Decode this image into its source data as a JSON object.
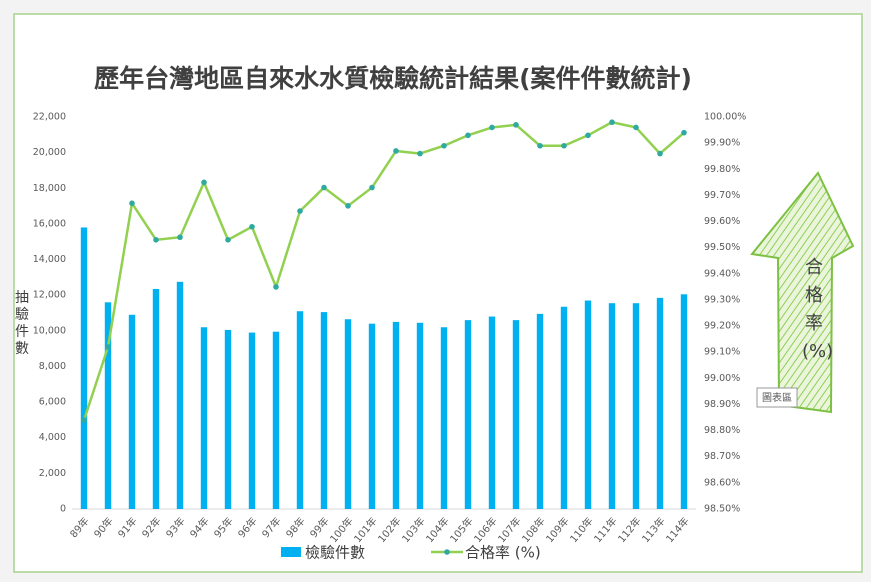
{
  "chart_data": {
    "type": "bar-line",
    "title": "歷年台灣地區自來水水質檢驗統計結果(案件件數統計)",
    "y_axis_label": "抽驗件數",
    "arrow_label": "合格率 (%)",
    "tooltip": "圖表區",
    "categories": [
      "89年",
      "90年",
      "91年",
      "92年",
      "93年",
      "94年",
      "95年",
      "96年",
      "97年",
      "98年",
      "99年",
      "100年",
      "101年",
      "102年",
      "103年",
      "104年",
      "105年",
      "106年",
      "107年",
      "108年",
      "109年",
      "110年",
      "111年",
      "112年",
      "113年",
      "114年"
    ],
    "series": [
      {
        "name": "檢驗件數",
        "color": "#00b0f0",
        "kind": "bar",
        "values": [
          15800,
          11600,
          10900,
          12350,
          12750,
          10200,
          10050,
          9900,
          9950,
          11100,
          11050,
          10650,
          10400,
          10500,
          10450,
          10200,
          10600,
          10800,
          10600,
          10950,
          11350,
          11700,
          11550,
          11550,
          11850,
          12050
        ]
      },
      {
        "name": "合格率 (%)",
        "color": "#92d050",
        "marker_color": "#2eaaa0",
        "kind": "line",
        "axis": "y2",
        "values": [
          98.84,
          99.12,
          99.67,
          99.53,
          99.54,
          99.75,
          99.53,
          99.58,
          99.35,
          99.64,
          99.73,
          99.66,
          99.73,
          99.87,
          99.86,
          99.89,
          99.93,
          99.96,
          99.97,
          99.89,
          99.89,
          99.93,
          99.98,
          99.96,
          99.86,
          99.94
        ]
      }
    ],
    "ylim": [
      0,
      22000
    ],
    "yticks": [
      0,
      {
        "value": 2000,
        "label": "2,000"
      },
      {
        "value": 4000,
        "label": "4,000"
      },
      {
        "value": 6000,
        "label": "6,000"
      },
      {
        "value": 8000,
        "label": "8,000"
      },
      {
        "value": 10000,
        "label": "10,000"
      },
      {
        "value": 12000,
        "label": "12,000"
      },
      {
        "value": 14000,
        "label": "14,000"
      },
      {
        "value": 16000,
        "label": "16,000"
      },
      {
        "value": 18000,
        "label": "18,000"
      },
      {
        "value": 20000,
        "label": "20,000"
      },
      {
        "value": 22000,
        "label": "22,000"
      }
    ],
    "y2lim": [
      98.5,
      100
    ],
    "y2ticks": [
      {
        "value": 98.5,
        "label": "98.50%"
      },
      {
        "value": 98.6,
        "label": "98.60%"
      },
      {
        "value": 98.7,
        "label": "98.70%"
      },
      {
        "value": 98.8,
        "label": "98.80%"
      },
      {
        "value": 98.9,
        "label": "98.90%"
      },
      {
        "value": 99.0,
        "label": "99.00%"
      },
      {
        "value": 99.1,
        "label": "99.10%"
      },
      {
        "value": 99.2,
        "label": "99.20%"
      },
      {
        "value": 99.3,
        "label": "99.30%"
      },
      {
        "value": 99.4,
        "label": "99.40%"
      },
      {
        "value": 99.5,
        "label": "99.50%"
      },
      {
        "value": 99.6,
        "label": "99.60%"
      },
      {
        "value": 99.7,
        "label": "99.70%"
      },
      {
        "value": 99.8,
        "label": "99.80%"
      },
      {
        "value": 99.9,
        "label": "99.90%"
      },
      {
        "value": 100.0,
        "label": "100.00%"
      }
    ],
    "grid": false
  }
}
